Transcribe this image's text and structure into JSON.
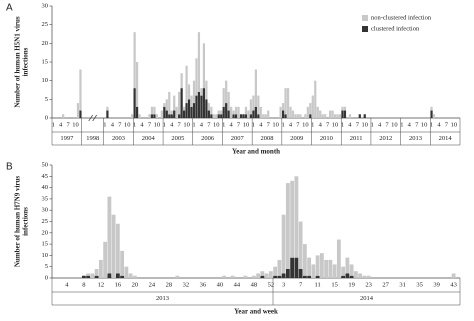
{
  "chart_data": [
    {
      "type": "bar",
      "panel": "A",
      "y_label": [
        "Number of human H5N1 virus",
        "infections"
      ],
      "x_label": "Year and month",
      "stacked": true,
      "legend": "top-right",
      "ylim": [
        0,
        30
      ],
      "yticks": [
        0,
        5,
        10,
        15,
        20,
        25,
        30
      ],
      "groups": [
        {
          "label": "1997",
          "categories": [
            "1",
            null,
            null,
            "4",
            null,
            null,
            "7",
            null,
            null,
            "10",
            null,
            null
          ]
        },
        {
          "label": "1998",
          "categories": []
        },
        {
          "label": "2003",
          "categories": [
            "1",
            null,
            null,
            "4",
            null,
            null,
            "7",
            null,
            null,
            "10",
            null,
            null
          ]
        },
        {
          "label": "2004",
          "categories": [
            "1",
            null,
            null,
            "4",
            null,
            null,
            "7",
            null,
            null,
            "10",
            null,
            null
          ]
        },
        {
          "label": "2005",
          "categories": [
            "1",
            null,
            null,
            "4",
            null,
            null,
            "7",
            null,
            null,
            "10",
            null,
            null
          ]
        },
        {
          "label": "2006",
          "categories": [
            "1",
            null,
            null,
            "4",
            null,
            null,
            "7",
            null,
            null,
            "10",
            null,
            null
          ]
        },
        {
          "label": "2007",
          "categories": [
            "1",
            null,
            null,
            "4",
            null,
            null,
            "7",
            null,
            null,
            "10",
            null,
            null
          ]
        },
        {
          "label": "2008",
          "categories": [
            "1",
            null,
            null,
            "4",
            null,
            null,
            "7",
            null,
            null,
            "10",
            null,
            null
          ]
        },
        {
          "label": "2009",
          "categories": [
            "1",
            null,
            null,
            "4",
            null,
            null,
            "7",
            null,
            null,
            "10",
            null,
            null
          ]
        },
        {
          "label": "2010",
          "categories": [
            "1",
            null,
            null,
            "4",
            null,
            null,
            "7",
            null,
            null,
            "10",
            null,
            null
          ]
        },
        {
          "label": "2011",
          "categories": [
            "1",
            null,
            null,
            "4",
            null,
            null,
            "7",
            null,
            null,
            "10",
            null,
            null
          ]
        },
        {
          "label": "2012",
          "categories": [
            "1",
            null,
            null,
            "4",
            null,
            null,
            "7",
            null,
            null,
            "10",
            null,
            null
          ]
        },
        {
          "label": "2013",
          "categories": [
            "1",
            null,
            null,
            "4",
            null,
            null,
            "7",
            null,
            null,
            "10",
            null,
            null
          ]
        },
        {
          "label": "2014",
          "categories": [
            "1",
            null,
            null,
            "4",
            null,
            null,
            "7",
            null,
            null,
            "10",
            null,
            null
          ]
        }
      ],
      "series": [
        {
          "name": "non-clustered infection",
          "color": "#c8c8c8",
          "values": [
            [
              0,
              0,
              0,
              0,
              1,
              0,
              0,
              0,
              0,
              0,
              4,
              11
            ],
            [],
            [
              0,
              1,
              0,
              0,
              0,
              0,
              0,
              0,
              0,
              0,
              0,
              1
            ],
            [
              15,
              12,
              1,
              0,
              0,
              0,
              1,
              2,
              2,
              1,
              0,
              2
            ],
            [
              1,
              3,
              6,
              1,
              4,
              3,
              6,
              4,
              1,
              10,
              4,
              3
            ],
            [
              6,
              10,
              16,
              2,
              12,
              5,
              2,
              2,
              1,
              1,
              1,
              1
            ],
            [
              5,
              6,
              5,
              3,
              1,
              2,
              3,
              0,
              0,
              2,
              2,
              4
            ],
            [
              4,
              10,
              5,
              3,
              1,
              1,
              2,
              0,
              0,
              0,
              0,
              3
            ],
            [
              2,
              7,
              8,
              3,
              2,
              1,
              1,
              1,
              0,
              1,
              3,
              3
            ],
            [
              6,
              10,
              3,
              2,
              1,
              1,
              0,
              2,
              2,
              1,
              1,
              1
            ],
            [
              1,
              1,
              0,
              1,
              0,
              0,
              0,
              0,
              0,
              0,
              0,
              0
            ],
            [
              0,
              0,
              0,
              0,
              0,
              0,
              0,
              0,
              0,
              0,
              0,
              0
            ],
            [
              0,
              0,
              0,
              0,
              0,
              0,
              0,
              0,
              0,
              0,
              0,
              0
            ],
            [
              1,
              1,
              0,
              0,
              0,
              0,
              0,
              0,
              0,
              0,
              0,
              0
            ]
          ]
        },
        {
          "name": "clustered infection",
          "color": "#333333",
          "values": [
            [
              0,
              0,
              0,
              0,
              0,
              0,
              0,
              0,
              0,
              0,
              0,
              2
            ],
            [],
            [
              0,
              2,
              0,
              0,
              0,
              0,
              0,
              0,
              0,
              0,
              0,
              0
            ],
            [
              8,
              3,
              0,
              0,
              0,
              0,
              0,
              1,
              1,
              0,
              0,
              0
            ],
            [
              3,
              2,
              1,
              1,
              2,
              0,
              1,
              8,
              2,
              4,
              5,
              3
            ],
            [
              4,
              6,
              7,
              6,
              8,
              5,
              2,
              1,
              0,
              0,
              1,
              1
            ],
            [
              3,
              4,
              2,
              0,
              1,
              1,
              0,
              1,
              1,
              1,
              0,
              1
            ],
            [
              2,
              3,
              1,
              0,
              0,
              0,
              0,
              0,
              0,
              0,
              0,
              0
            ],
            [
              2,
              1,
              0,
              0,
              0,
              0,
              0,
              0,
              0,
              0,
              0,
              1
            ],
            [
              0,
              0,
              0,
              0,
              0,
              0,
              0,
              0,
              0,
              0,
              0,
              0
            ],
            [
              2,
              2,
              0,
              0,
              0,
              0,
              0,
              1,
              0,
              1,
              0,
              0
            ],
            [
              0,
              0,
              0,
              0,
              0,
              0,
              0,
              0,
              0,
              0,
              0,
              0
            ],
            [
              0,
              0,
              0,
              0,
              0,
              0,
              0,
              0,
              0,
              0,
              0,
              0
            ],
            [
              2,
              0,
              0,
              0,
              0,
              0,
              0,
              0,
              0,
              0,
              0,
              0
            ]
          ]
        }
      ]
    },
    {
      "type": "bar",
      "panel": "B",
      "y_label": [
        "Number of human H7N9 virus",
        "infections"
      ],
      "x_label": "Year and week",
      "stacked": true,
      "ylim": [
        0,
        50
      ],
      "yticks": [
        0,
        5,
        10,
        15,
        20,
        25,
        30,
        35,
        40,
        45,
        50
      ],
      "groups": [
        {
          "label": "2013",
          "categories": [
            null,
            null,
            null,
            "4",
            null,
            null,
            null,
            "8",
            null,
            null,
            null,
            "12",
            null,
            null,
            null,
            "16",
            null,
            null,
            null,
            "20",
            null,
            null,
            null,
            "24",
            null,
            null,
            null,
            "28",
            null,
            null,
            null,
            "32",
            null,
            null,
            null,
            "36",
            null,
            null,
            null,
            "40",
            null,
            null,
            null,
            "44",
            null,
            null,
            null,
            "48",
            null,
            null,
            null,
            "52"
          ]
        },
        {
          "label": "2014",
          "categories": [
            null,
            null,
            "3",
            null,
            null,
            null,
            "7",
            null,
            null,
            null,
            "11",
            null,
            null,
            null,
            "15",
            null,
            null,
            null,
            "19",
            null,
            null,
            null,
            "23",
            null,
            null,
            null,
            "27",
            null,
            null,
            null,
            "31",
            null,
            null,
            null,
            "35",
            null,
            null,
            null,
            "39",
            null,
            null,
            null,
            "43",
            null
          ]
        }
      ],
      "series": [
        {
          "color": "#c8c8c8",
          "values": [
            [
              0,
              0,
              0,
              0,
              0,
              0,
              0,
              0,
              1,
              2,
              3,
              8,
              16,
              34,
              28,
              22,
              11,
              5,
              2,
              1,
              0,
              0,
              0,
              0,
              0,
              0,
              0,
              0,
              0,
              1,
              0,
              0,
              0,
              0,
              0,
              0,
              0,
              0,
              0,
              0,
              1,
              0,
              1,
              0,
              0,
              1,
              0,
              1,
              2,
              2,
              2,
              3
            ],
            [
              4,
              7,
              26,
              38,
              34,
              36,
              21,
              14,
              8,
              6,
              9,
              11,
              8,
              8,
              6,
              17,
              4,
              7,
              5,
              3,
              2,
              1,
              1,
              0,
              0,
              0,
              0,
              0,
              0,
              0,
              0,
              0,
              0,
              0,
              0,
              0,
              0,
              0,
              0,
              0,
              0,
              0,
              2,
              0
            ]
          ]
        },
        {
          "color": "#333333",
          "values": [
            [
              0,
              0,
              0,
              0,
              0,
              0,
              0,
              1,
              1,
              0,
              1,
              0,
              0,
              2,
              0,
              2,
              1,
              0,
              0,
              0,
              0,
              0,
              0,
              0,
              0,
              0,
              0,
              0,
              0,
              0,
              0,
              0,
              0,
              0,
              0,
              0,
              0,
              0,
              0,
              0,
              0,
              0,
              0,
              0,
              0,
              0,
              0,
              0,
              0,
              1,
              0,
              0
            ],
            [
              1,
              1,
              2,
              4,
              9,
              9,
              4,
              1,
              1,
              0,
              1,
              0,
              0,
              0,
              0,
              0,
              1,
              2,
              1,
              0,
              0,
              0,
              0,
              0,
              0,
              0,
              0,
              0,
              0,
              0,
              0,
              0,
              0,
              0,
              0,
              0,
              0,
              0,
              0,
              0,
              0,
              0,
              0,
              0
            ]
          ]
        }
      ]
    }
  ]
}
